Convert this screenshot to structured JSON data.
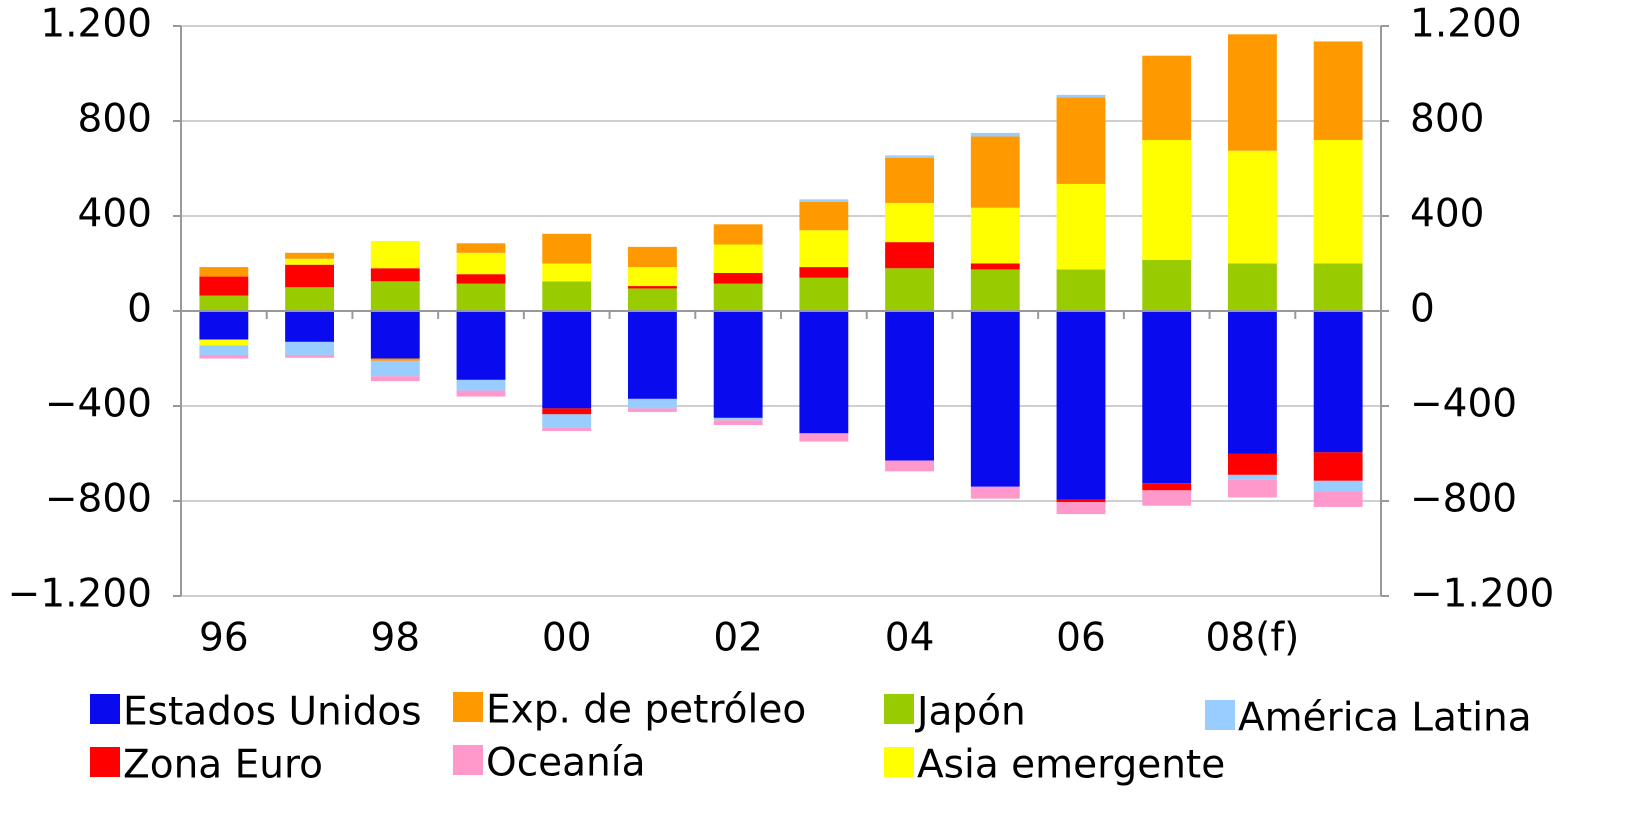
{
  "chart_data": {
    "type": "stacked-bar",
    "categories": [
      "96",
      null,
      "98",
      null,
      "00",
      null,
      "02",
      null,
      "04",
      null,
      "06",
      null,
      "08(f)",
      null
    ],
    "series": [
      {
        "name": "Estados Unidos",
        "color": "#0a0aee",
        "values": [
          -120,
          -130,
          -200,
          -290,
          -410,
          -370,
          -450,
          -515,
          -630,
          -740,
          -795,
          -725,
          -600,
          -595
        ]
      },
      {
        "name": "Japón",
        "color": "#99cc00",
        "values": [
          65,
          100,
          125,
          115,
          125,
          95,
          115,
          140,
          180,
          175,
          175,
          215,
          200,
          200
        ]
      },
      {
        "name": "Zona Euro",
        "color": "#ff0000",
        "values": [
          80,
          95,
          55,
          40,
          -25,
          10,
          45,
          45,
          110,
          25,
          -10,
          -30,
          -90,
          -120
        ]
      },
      {
        "name": "Asia emergente",
        "color": "#ffff00",
        "values": [
          -25,
          25,
          115,
          90,
          75,
          80,
          120,
          155,
          165,
          235,
          360,
          505,
          475,
          520
        ]
      },
      {
        "name": "Exp. de petróleo",
        "color": "#ff9900",
        "values": [
          40,
          25,
          -10,
          40,
          125,
          85,
          85,
          120,
          190,
          300,
          365,
          355,
          490,
          415
        ]
      },
      {
        "name": "América Latina",
        "color": "#99ccff",
        "values": [
          -40,
          -55,
          -65,
          -45,
          -55,
          -40,
          -10,
          10,
          10,
          15,
          10,
          0,
          -20,
          -45
        ]
      },
      {
        "name": "Oceanía",
        "color": "#ff99cc",
        "values": [
          -15,
          -12,
          -20,
          -25,
          -15,
          -15,
          -20,
          -35,
          -45,
          -50,
          -50,
          -65,
          -75,
          -65
        ]
      }
    ],
    "ylim": [
      -1200,
      1200
    ],
    "yticks": [
      {
        "value": -1200,
        "label": "−1.200"
      },
      {
        "value": -800,
        "label": "−800"
      },
      {
        "value": -400,
        "label": "−400"
      },
      0,
      400,
      800,
      {
        "value": 1200,
        "label": "1.200"
      }
    ],
    "y2lim": [
      -1200,
      1200
    ],
    "y2ticks": [
      {
        "value": -1200,
        "label": "−1.200"
      },
      {
        "value": -800,
        "label": "−800"
      },
      {
        "value": -400,
        "label": "−400"
      },
      0,
      400,
      800,
      {
        "value": 1200,
        "label": "1.200"
      }
    ],
    "grid": true
  }
}
